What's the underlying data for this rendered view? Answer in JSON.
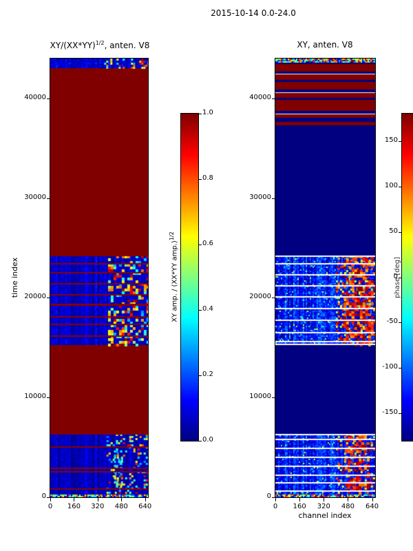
{
  "figure": {
    "title": "2015-10-14 0.0-24.0"
  },
  "titles": {
    "left_base": "XY/(XX*YY)",
    "left_sup": "1/2",
    "left_rest": ", anten. V8",
    "right": "XY, anten. V8"
  },
  "labels": {
    "ylabel": "time index",
    "xlabel": "channel index",
    "cb_left_base": "XY amp. / (XX*YY amp.)",
    "cb_left_sup": "1/2",
    "cb_right": "phase [deg]"
  },
  "chart_data": [
    {
      "type": "heatmap",
      "title": "XY/(XX*YY)^(1/2), anten. V8",
      "xlabel": "",
      "ylabel": "time index",
      "xlim": [
        0,
        660
      ],
      "ylim": [
        0,
        44000
      ],
      "xticks": [
        0,
        160,
        320,
        480,
        640
      ],
      "xticklabels": [
        "0",
        "160",
        "320",
        "480",
        "640"
      ],
      "yticks": [
        0,
        10000,
        20000,
        30000,
        40000
      ],
      "yticklabels": [
        "0",
        "10000",
        "20000",
        "30000",
        "40000"
      ],
      "colormap": "jet",
      "colorbar": {
        "label": "XY amp. / (XX*YY amp.)^(1/2)",
        "range": [
          0,
          1
        ],
        "ticks": [
          1.0,
          0.8,
          0.6,
          0.4,
          0.2,
          0.0
        ],
        "ticklabels": [
          "1.0",
          "0.8",
          "0.6",
          "0.4",
          "0.2",
          "0.0"
        ]
      },
      "seed": 11,
      "bands": [
        {
          "t0": 0,
          "t1": 350,
          "style": "noise",
          "base": 0.45,
          "amp": 0.9,
          "cell": 2
        },
        {
          "t0": 350,
          "t1": 6300,
          "style": "noise",
          "base": 0.06,
          "amp": 0.07,
          "col_amp": 0.06,
          "cell": 2,
          "speckles": [
            {
              "x0": 380,
              "x1": 660,
              "density": 0.2,
              "vmin": 0.2,
              "vmax": 0.95,
              "cell": 3
            },
            {
              "x0": 430,
              "x1": 480,
              "density": 0.35,
              "vmin": 0.3,
              "vmax": 0.6,
              "cell": 3
            }
          ]
        },
        {
          "t0": 6300,
          "t1": 15400,
          "style": "solid",
          "value": 1.0
        },
        {
          "t0": 15400,
          "t1": 24200,
          "style": "noise",
          "base": 0.07,
          "amp": 0.08,
          "col_amp": 0.06,
          "cell": 2,
          "speckles": [
            {
              "x0": 390,
              "x1": 660,
              "density": 0.4,
              "vmin": 0.25,
              "vmax": 1.0,
              "cell": 4
            }
          ]
        },
        {
          "t0": 24200,
          "t1": 43100,
          "style": "solid",
          "value": 1.0
        },
        {
          "t0": 43100,
          "t1": 44000,
          "style": "noise",
          "base": 0.08,
          "amp": 0.12,
          "col_amp": 0.05,
          "cell": 2,
          "speckles": [
            {
              "x0": 350,
              "x1": 660,
              "density": 0.3,
              "vmin": 0.2,
              "vmax": 1.0,
              "cell": 3
            }
          ]
        }
      ],
      "lines": [
        {
          "t": 900,
          "color": "#8b0000",
          "h": 2
        },
        {
          "t": 2600,
          "color": "#8b0000",
          "h": 2
        },
        {
          "t": 2950,
          "color": "#8b0000",
          "h": 2
        },
        {
          "t": 5100,
          "color": "#8b0000",
          "h": 2
        },
        {
          "t": 16200,
          "color": "#8b0000",
          "h": 2
        },
        {
          "t": 17400,
          "color": "#8b0000",
          "h": 2
        },
        {
          "t": 18200,
          "color": "#8b0000",
          "h": 2
        },
        {
          "t": 19400,
          "color": "#8b0000",
          "h": 3
        },
        {
          "t": 20400,
          "color": "#8b0000",
          "h": 2
        },
        {
          "t": 21500,
          "color": "#8b0000",
          "h": 2
        },
        {
          "t": 22600,
          "color": "#8b0000",
          "h": 2
        },
        {
          "t": 23500,
          "color": "#8b0000",
          "h": 2
        }
      ]
    },
    {
      "type": "heatmap",
      "title": "XY, anten. V8",
      "xlabel": "channel index",
      "ylabel": "",
      "xlim": [
        0,
        660
      ],
      "ylim": [
        0,
        44000
      ],
      "xticks": [
        0,
        160,
        320,
        480,
        640
      ],
      "xticklabels": [
        "0",
        "160",
        "320",
        "480",
        "640"
      ],
      "yticks": [
        0,
        10000,
        20000,
        30000,
        40000
      ],
      "yticklabels": [
        "0",
        "10000",
        "20000",
        "30000",
        "40000"
      ],
      "colormap": "jet",
      "colorbar": {
        "label": "phase [deg]",
        "range": [
          -180,
          180
        ],
        "ticks": [
          150,
          100,
          50,
          0,
          -50,
          -100,
          -150
        ],
        "ticklabels": [
          "150",
          "100",
          "50",
          "0",
          "-50",
          "-100",
          "-150"
        ]
      },
      "seed": 23,
      "bands": [
        {
          "t0": 0,
          "t1": 350,
          "style": "noise",
          "base": 0.5,
          "amp": 1.0,
          "cell": 2
        },
        {
          "t0": 350,
          "t1": 6300,
          "style": "noise",
          "base": 0.13,
          "amp": 0.16,
          "col_amp": 0.08,
          "cell": 2,
          "speckles": [
            {
              "x0": 400,
              "x1": 660,
              "density": 0.25,
              "vmin": 0.45,
              "vmax": 1.0,
              "cell": 3
            },
            {
              "x0": 460,
              "x1": 620,
              "density": 0.45,
              "vmin": 0.7,
              "vmax": 1.0,
              "cell": 4
            },
            {
              "x0": 0,
              "x1": 400,
              "density": 0.05,
              "vmin": 0.3,
              "vmax": 0.6,
              "cell": 2
            }
          ]
        },
        {
          "t0": 6300,
          "t1": 15400,
          "style": "solid",
          "value": 0.0
        },
        {
          "t0": 15400,
          "t1": 24200,
          "style": "noise",
          "base": 0.13,
          "amp": 0.18,
          "col_amp": 0.08,
          "cell": 2,
          "speckles": [
            {
              "x0": 400,
              "x1": 660,
              "density": 0.3,
              "vmin": 0.45,
              "vmax": 1.0,
              "cell": 3
            },
            {
              "x0": 450,
              "x1": 640,
              "density": 0.5,
              "vmin": 0.7,
              "vmax": 1.0,
              "cell": 4
            },
            {
              "x0": 0,
              "x1": 400,
              "density": 0.06,
              "vmin": 0.3,
              "vmax": 0.6,
              "cell": 2
            }
          ]
        },
        {
          "t0": 24200,
          "t1": 37300,
          "style": "solid",
          "value": 0.0
        },
        {
          "t0": 37300,
          "t1": 37700,
          "style": "solid",
          "value": 1.0
        },
        {
          "t0": 37700,
          "t1": 38100,
          "style": "solid",
          "value": 0.0
        },
        {
          "t0": 38100,
          "t1": 38500,
          "style": "solid",
          "value": 1.0
        },
        {
          "t0": 38500,
          "t1": 38800,
          "style": "solid",
          "value": 0.0
        },
        {
          "t0": 38800,
          "t1": 39900,
          "style": "solid",
          "value": 1.0
        },
        {
          "t0": 39900,
          "t1": 40100,
          "style": "solid",
          "value": 0.0
        },
        {
          "t0": 40100,
          "t1": 40600,
          "style": "solid",
          "value": 1.0
        },
        {
          "t0": 40600,
          "t1": 40900,
          "style": "solid",
          "value": 0.0
        },
        {
          "t0": 40900,
          "t1": 41700,
          "style": "solid",
          "value": 1.0
        },
        {
          "t0": 41700,
          "t1": 41900,
          "style": "solid",
          "value": 0.0
        },
        {
          "t0": 41900,
          "t1": 42500,
          "style": "solid",
          "value": 1.0
        },
        {
          "t0": 42500,
          "t1": 42700,
          "style": "solid",
          "value": 0.0
        },
        {
          "t0": 42700,
          "t1": 43500,
          "style": "solid",
          "value": 1.0
        },
        {
          "t0": 43500,
          "t1": 43650,
          "style": "solid",
          "value": 0.0
        },
        {
          "t0": 43650,
          "t1": 44000,
          "style": "noise",
          "base": 0.5,
          "amp": 1.0,
          "cell": 2
        }
      ],
      "lines": [
        {
          "t": 700,
          "color": "#ffffff",
          "h": 2
        },
        {
          "t": 1500,
          "color": "#ffffff",
          "h": 2
        },
        {
          "t": 2300,
          "color": "#ffffff",
          "h": 2
        },
        {
          "t": 3200,
          "color": "#ffffff",
          "h": 2
        },
        {
          "t": 4100,
          "color": "#ffffff",
          "h": 2
        },
        {
          "t": 5000,
          "color": "#ffffff",
          "h": 2
        },
        {
          "t": 5900,
          "color": "#ffffff",
          "h": 2
        },
        {
          "t": 6350,
          "color": "#ffffff",
          "h": 2
        },
        {
          "t": 15400,
          "color": "#ffffff",
          "h": 2
        },
        {
          "t": 15700,
          "color": "#ffffff",
          "h": 2
        },
        {
          "t": 16600,
          "color": "#ffffff",
          "h": 2
        },
        {
          "t": 17800,
          "color": "#ffffff",
          "h": 2
        },
        {
          "t": 19000,
          "color": "#ffffff",
          "h": 2
        },
        {
          "t": 20200,
          "color": "#ffffff",
          "h": 2
        },
        {
          "t": 21300,
          "color": "#ffffff",
          "h": 2
        },
        {
          "t": 22400,
          "color": "#ffffff",
          "h": 2
        },
        {
          "t": 23500,
          "color": "#ffffff",
          "h": 2
        },
        {
          "t": 24250,
          "color": "#ffffff",
          "h": 2
        },
        {
          "t": 38500,
          "color": "#ffffff",
          "h": 1
        },
        {
          "t": 40600,
          "color": "#ffffff",
          "h": 1
        },
        {
          "t": 42500,
          "color": "#ffffff",
          "h": 1
        }
      ]
    }
  ]
}
